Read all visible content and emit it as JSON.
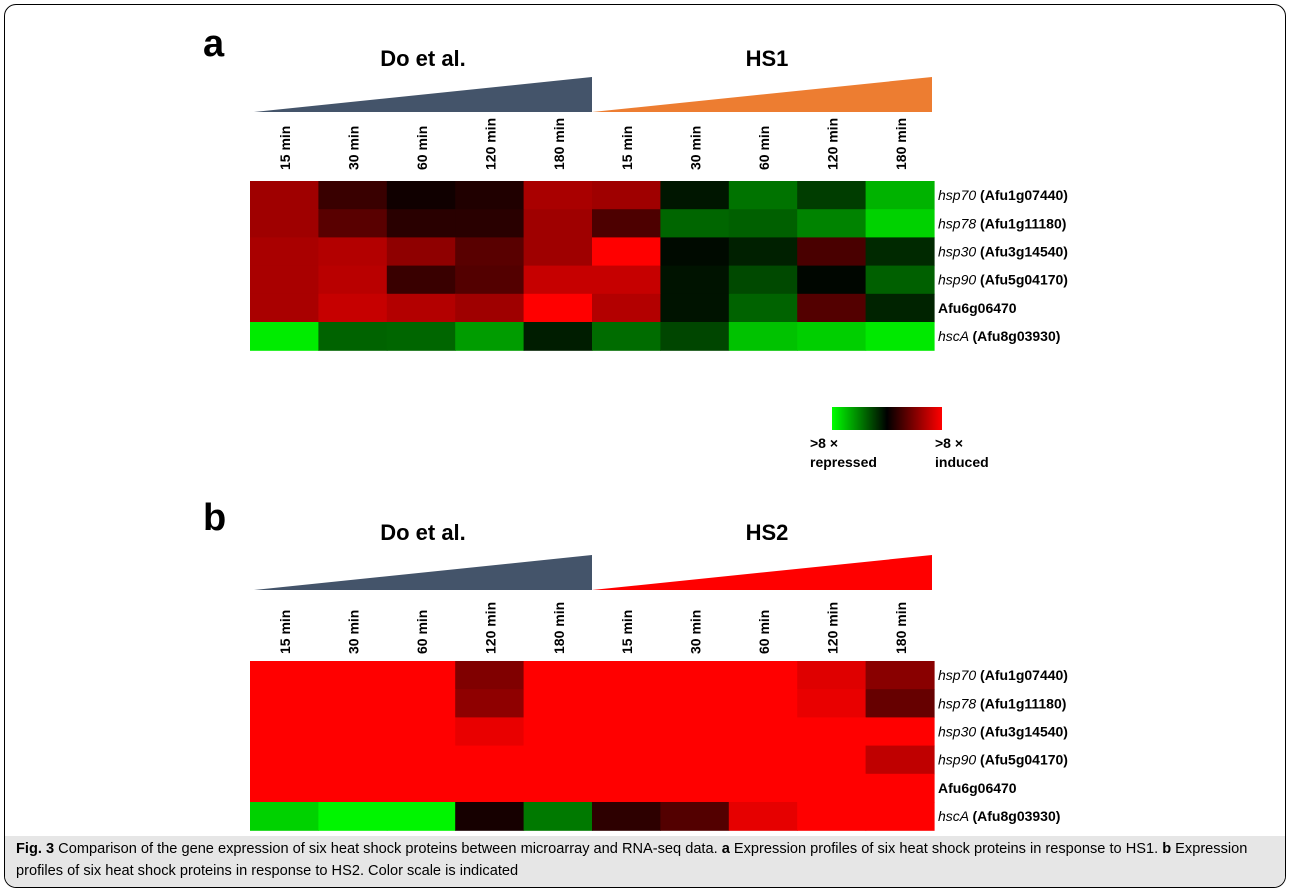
{
  "colors": {
    "do_wedge": "#44546a",
    "hs1_wedge": "#ed7d31",
    "hs2_wedge": "#ff0000",
    "scale_low": "#00ff00",
    "scale_mid": "#000000",
    "scale_high": "#ff0000",
    "caption_bg": "#e6e6e6"
  },
  "legend": {
    "left_top": ">8 ×",
    "left_bottom": "repressed",
    "right_top": ">8 ×",
    "right_bottom": "induced"
  },
  "caption": {
    "fig_label": "Fig. 3",
    "intro": " Comparison of the gene expression of six heat shock proteins between microarray and RNA-seq data. ",
    "a_label": "a",
    "a_text": " Expression profiles of six heat shock proteins in response to HS1. ",
    "b_label": "b",
    "b_text": " Expression profiles of six heat shock proteins in response to HS2. Color scale is indicated"
  },
  "chart_data": [
    {
      "type": "heatmap",
      "panel": "a",
      "groups": [
        {
          "name": "Do et al.",
          "columns": [
            "15 min",
            "30 min",
            "60 min",
            "120 min",
            "180 min"
          ]
        },
        {
          "name": "HS1",
          "columns": [
            "15 min",
            "30 min",
            "60 min",
            "120 min",
            "180 min"
          ]
        }
      ],
      "rows": [
        {
          "gene_italic": "hsp70",
          "locus": "(Afu1g07440)"
        },
        {
          "gene_italic": "hsp78",
          "locus": "(Afu1g11180)"
        },
        {
          "gene_italic": "hsp30",
          "locus": "(Afu3g14540)"
        },
        {
          "gene_italic": "hsp90",
          "locus": "(Afu5g04170)"
        },
        {
          "gene_italic": "",
          "locus": "Afu6g06470"
        },
        {
          "gene_italic": "hscA",
          "locus": "(Afu8g03930)"
        }
      ],
      "scale": {
        "min": -8,
        "max": 8,
        "colors": [
          "#00ff00",
          "#000000",
          "#ff0000"
        ]
      },
      "values": [
        [
          5.0,
          1.8,
          0.5,
          1.0,
          5.3,
          5.0,
          -0.7,
          -3.6,
          -1.9,
          -5.6
        ],
        [
          5.0,
          2.8,
          1.3,
          1.3,
          5.0,
          2.4,
          -3.2,
          -3.0,
          -4.1,
          -6.6
        ],
        [
          5.3,
          5.6,
          4.5,
          2.8,
          5.0,
          8.0,
          -0.3,
          -1.0,
          2.3,
          -1.3
        ],
        [
          5.3,
          5.8,
          1.8,
          2.6,
          6.2,
          6.2,
          -0.6,
          -2.3,
          -0.2,
          -3.0
        ],
        [
          5.3,
          6.2,
          5.6,
          5.0,
          8.0,
          5.6,
          -0.6,
          -3.1,
          2.6,
          -1.1
        ],
        [
          -7.4,
          -3.1,
          -3.2,
          -4.9,
          -0.9,
          -3.4,
          -2.2,
          -6.1,
          -6.5,
          -7.3
        ]
      ]
    },
    {
      "type": "heatmap",
      "panel": "b",
      "groups": [
        {
          "name": "Do et al.",
          "columns": [
            "15 min",
            "30 min",
            "60 min",
            "120 min",
            "180 min"
          ]
        },
        {
          "name": "HS2",
          "columns": [
            "15 min",
            "30 min",
            "60 min",
            "120 min",
            "180 min"
          ]
        }
      ],
      "rows": [
        {
          "gene_italic": "hsp70",
          "locus": "(Afu1g07440)"
        },
        {
          "gene_italic": "hsp78",
          "locus": "(Afu1g11180)"
        },
        {
          "gene_italic": "hsp30",
          "locus": "(Afu3g14540)"
        },
        {
          "gene_italic": "hsp90",
          "locus": "(Afu5g04170)"
        },
        {
          "gene_italic": "",
          "locus": "Afu6g06470"
        },
        {
          "gene_italic": "hscA",
          "locus": "(Afu8g03930)"
        }
      ],
      "scale": {
        "min": -8,
        "max": 8,
        "colors": [
          "#00ff00",
          "#000000",
          "#ff0000"
        ]
      },
      "values": [
        [
          8.0,
          8.0,
          8.0,
          4.0,
          8.0,
          8.0,
          8.0,
          8.0,
          7.0,
          4.3
        ],
        [
          8.0,
          8.0,
          8.0,
          4.5,
          8.0,
          8.0,
          8.0,
          8.0,
          7.3,
          3.2
        ],
        [
          8.0,
          8.0,
          8.0,
          7.3,
          8.0,
          8.0,
          8.0,
          8.0,
          8.0,
          8.0
        ],
        [
          8.0,
          8.0,
          8.0,
          8.0,
          8.0,
          8.0,
          8.0,
          8.0,
          8.0,
          6.0
        ],
        [
          8.0,
          8.0,
          8.0,
          8.0,
          8.0,
          8.0,
          8.0,
          8.0,
          8.0,
          8.0
        ],
        [
          -6.6,
          -7.7,
          -7.7,
          0.7,
          -3.8,
          1.4,
          2.6,
          7.2,
          8.0,
          8.0
        ]
      ]
    }
  ]
}
